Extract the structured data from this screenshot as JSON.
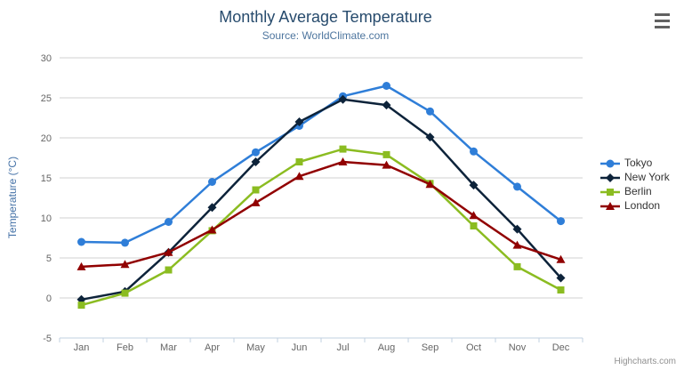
{
  "chart_data": {
    "type": "line",
    "title": "Monthly Average Temperature",
    "subtitle": "Source: WorldClimate.com",
    "xlabel": "",
    "ylabel": "Temperature (°C)",
    "ylim": [
      -5,
      30
    ],
    "y_ticks": [
      -5,
      0,
      5,
      10,
      15,
      20,
      25,
      30
    ],
    "grid": true,
    "legend_position": "right",
    "categories": [
      "Jan",
      "Feb",
      "Mar",
      "Apr",
      "May",
      "Jun",
      "Jul",
      "Aug",
      "Sep",
      "Oct",
      "Nov",
      "Dec"
    ],
    "series": [
      {
        "name": "Tokyo",
        "color": "#2f7ed8",
        "marker": "circle",
        "values": [
          7.0,
          6.9,
          9.5,
          14.5,
          18.2,
          21.5,
          25.2,
          26.5,
          23.3,
          18.3,
          13.9,
          9.6
        ]
      },
      {
        "name": "New York",
        "color": "#0d233a",
        "marker": "diamond",
        "values": [
          -0.2,
          0.8,
          5.7,
          11.3,
          17.0,
          22.0,
          24.8,
          24.1,
          20.1,
          14.1,
          8.6,
          2.5
        ]
      },
      {
        "name": "Berlin",
        "color": "#8bbc21",
        "marker": "square",
        "values": [
          -0.9,
          0.6,
          3.5,
          8.4,
          13.5,
          17.0,
          18.6,
          17.9,
          14.3,
          9.0,
          3.9,
          1.0
        ]
      },
      {
        "name": "London",
        "color": "#910000",
        "marker": "triangle",
        "values": [
          3.9,
          4.2,
          5.7,
          8.5,
          11.9,
          15.2,
          17.0,
          16.6,
          14.2,
          10.3,
          6.6,
          4.8
        ]
      }
    ],
    "colors": {
      "title": "#274b6d",
      "subtitle": "#4d759e",
      "axis_title": "#4572a7",
      "tick_label": "#666666",
      "gridline": "#d0d0d0",
      "axis_line": "#c0d0e0",
      "legend_label": "#333333"
    }
  },
  "export_menu_icon": "hamburger-icon",
  "credits": "Highcharts.com"
}
